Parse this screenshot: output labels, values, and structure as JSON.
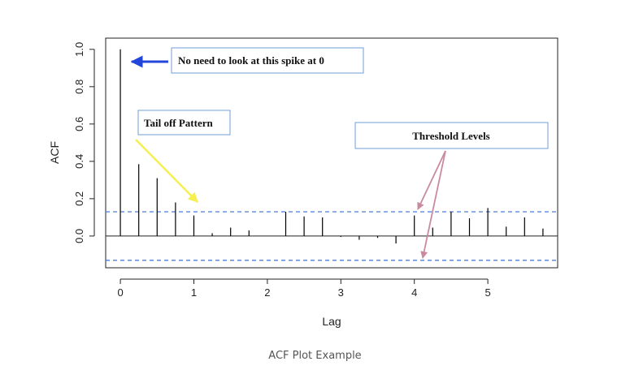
{
  "chart_data": {
    "type": "bar",
    "subtype": "acf-stem",
    "xlabel": "Lag",
    "ylabel": "ACF",
    "xlim": [
      -0.2,
      5.95
    ],
    "ylim": [
      -0.17,
      1.06
    ],
    "x_ticks": [
      0,
      1,
      2,
      3,
      4,
      5
    ],
    "y_ticks": [
      0.0,
      0.2,
      0.4,
      0.6,
      0.8,
      1.0
    ],
    "x_tick_labels": [
      "0",
      "1",
      "2",
      "3",
      "4",
      "5"
    ],
    "y_tick_labels": [
      "0.0",
      "0.2",
      "0.4",
      "0.6",
      "0.8",
      "1.0"
    ],
    "lags": [
      0,
      0.25,
      0.5,
      0.75,
      1.0,
      1.25,
      1.5,
      1.75,
      2.0,
      2.25,
      2.5,
      2.75,
      3.0,
      3.25,
      3.5,
      3.75,
      4.0,
      4.25,
      4.5,
      4.75,
      5.0,
      5.25,
      5.5,
      5.75
    ],
    "values": [
      1.0,
      0.385,
      0.31,
      0.18,
      0.11,
      0.015,
      0.045,
      0.03,
      0.0,
      0.13,
      0.105,
      0.1,
      -0.005,
      -0.02,
      -0.01,
      -0.04,
      0.11,
      0.045,
      0.13,
      0.095,
      0.15,
      0.05,
      0.1,
      0.04
    ],
    "threshold_upper": 0.13,
    "threshold_lower": -0.13,
    "grid": false,
    "annotations": [
      "No need to look at this spike at 0",
      "Tail off Pattern",
      "Threshold Levels"
    ],
    "colors": {
      "stem": "#000000",
      "threshold": "#4a7fd6",
      "spike_arrow": "#2346d8",
      "tail_arrow": "#f5ef52",
      "threshold_arrow": "#c98aa0",
      "note_border": "#6f9fd6"
    }
  },
  "caption": "ACF Plot Example"
}
